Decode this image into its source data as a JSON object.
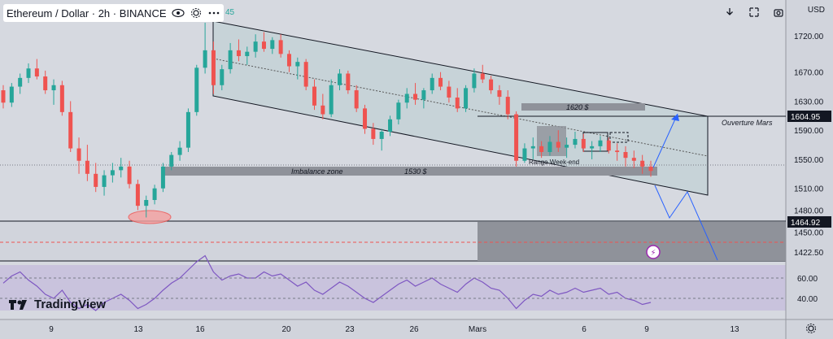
{
  "header": {
    "symbol": "Ethereum / Dollar · 2h · BINANCE",
    "suffix": "45"
  },
  "currency": "USD",
  "logo_text": "TradingView",
  "colors": {
    "background": "#d1d4dc",
    "up": "#26a69a",
    "down": "#ef5350",
    "channel_fill": "#c7d3d8",
    "zone": "#787b86",
    "rsi": "#7e57c2",
    "projection": "#2962ff"
  },
  "chart_data": [
    {
      "type": "candlestick",
      "title": "Ethereum / Dollar · 2h · BINANCE",
      "ylabel": "USD",
      "y_ticks": [
        1720.0,
        1670.0,
        1630.0,
        1590.0,
        1550.0,
        1510.0,
        1480.0,
        1450.0,
        1422.5
      ],
      "ylim": [
        1410,
        1755
      ],
      "x_ticks": [
        "9",
        "13",
        "16",
        "20",
        "23",
        "26",
        "Mars",
        "6",
        "9",
        "13"
      ],
      "x_tick_positions": [
        63,
        170,
        246,
        352,
        430,
        509,
        587,
        718,
        795,
        903
      ],
      "price_labels": [
        {
          "value": "1604.95",
          "price": 1604.95
        },
        {
          "value": "1464.92",
          "price": 1464.92
        }
      ],
      "annotations": [
        {
          "text": "Imbalance zone",
          "price": 1530
        },
        {
          "text": "1530 $",
          "price": 1530
        },
        {
          "text": "1620 $",
          "price": 1620
        },
        {
          "text": "Ouverture Mars",
          "price": 1604.95
        },
        {
          "text": "Range Week-end",
          "price": 1545
        }
      ],
      "series": [
        {
          "values": [
            [
              1645,
              1652,
              1620,
              1628
            ],
            [
              1628,
              1655,
              1622,
              1650
            ],
            [
              1650,
              1668,
              1640,
              1662
            ],
            [
              1662,
              1682,
              1655,
              1675
            ],
            [
              1675,
              1688,
              1660,
              1664
            ],
            [
              1664,
              1672,
              1640,
              1645
            ],
            [
              1645,
              1660,
              1625,
              1652
            ],
            [
              1652,
              1658,
              1610,
              1615
            ],
            [
              1615,
              1630,
              1560,
              1565
            ],
            [
              1565,
              1580,
              1530,
              1548
            ],
            [
              1548,
              1570,
              1520,
              1530
            ],
            [
              1530,
              1545,
              1505,
              1512
            ],
            [
              1512,
              1535,
              1500,
              1528
            ],
            [
              1528,
              1545,
              1518,
              1535
            ],
            [
              1535,
              1552,
              1525,
              1540
            ],
            [
              1540,
              1548,
              1510,
              1516
            ],
            [
              1516,
              1522,
              1480,
              1486
            ],
            [
              1486,
              1500,
              1470,
              1494
            ],
            [
              1494,
              1515,
              1488,
              1510
            ],
            [
              1510,
              1545,
              1505,
              1540
            ],
            [
              1540,
              1560,
              1535,
              1556
            ],
            [
              1556,
              1575,
              1548,
              1566
            ],
            [
              1566,
              1620,
              1560,
              1615
            ],
            [
              1615,
              1680,
              1610,
              1676
            ],
            [
              1676,
              1738,
              1668,
              1700
            ],
            [
              1700,
              1712,
              1640,
              1652
            ],
            [
              1652,
              1680,
              1645,
              1674
            ],
            [
              1674,
              1710,
              1668,
              1700
            ],
            [
              1700,
              1715,
              1685,
              1692
            ],
            [
              1692,
              1705,
              1680,
              1698
            ],
            [
              1698,
              1722,
              1690,
              1712
            ],
            [
              1712,
              1725,
              1698,
              1702
            ],
            [
              1702,
              1718,
              1695,
              1714
            ],
            [
              1714,
              1722,
              1690,
              1695
            ],
            [
              1695,
              1700,
              1670,
              1678
            ],
            [
              1678,
              1690,
              1660,
              1684
            ],
            [
              1684,
              1688,
              1645,
              1650
            ],
            [
              1650,
              1660,
              1618,
              1624
            ],
            [
              1624,
              1640,
              1605,
              1612
            ],
            [
              1612,
              1660,
              1608,
              1652
            ],
            [
              1652,
              1674,
              1645,
              1668
            ],
            [
              1668,
              1672,
              1640,
              1645
            ],
            [
              1645,
              1652,
              1615,
              1620
            ],
            [
              1620,
              1625,
              1585,
              1592
            ],
            [
              1592,
              1600,
              1570,
              1578
            ],
            [
              1578,
              1592,
              1562,
              1588
            ],
            [
              1588,
              1610,
              1582,
              1605
            ],
            [
              1605,
              1632,
              1598,
              1628
            ],
            [
              1628,
              1648,
              1620,
              1640
            ],
            [
              1640,
              1655,
              1625,
              1632
            ],
            [
              1632,
              1648,
              1620,
              1645
            ],
            [
              1645,
              1668,
              1640,
              1662
            ],
            [
              1662,
              1670,
              1645,
              1650
            ],
            [
              1650,
              1658,
              1628,
              1635
            ],
            [
              1635,
              1648,
              1615,
              1620
            ],
            [
              1620,
              1652,
              1615,
              1648
            ],
            [
              1648,
              1675,
              1642,
              1668
            ],
            [
              1668,
              1680,
              1655,
              1660
            ],
            [
              1660,
              1665,
              1640,
              1645
            ],
            [
              1645,
              1652,
              1625,
              1636
            ],
            [
              1636,
              1645,
              1605,
              1612
            ],
            [
              1612,
              1616,
              1540,
              1548
            ],
            [
              1548,
              1572,
              1545,
              1565
            ],
            [
              1565,
              1580,
              1550,
              1568
            ],
            [
              1568,
              1575,
              1552,
              1560
            ],
            [
              1560,
              1582,
              1555,
              1574
            ],
            [
              1574,
              1590,
              1560,
              1566
            ],
            [
              1566,
              1580,
              1552,
              1570
            ],
            [
              1570,
              1588,
              1565,
              1578
            ],
            [
              1578,
              1585,
              1560,
              1565
            ],
            [
              1565,
              1575,
              1550,
              1568
            ],
            [
              1568,
              1582,
              1560,
              1576
            ],
            [
              1576,
              1580,
              1558,
              1562
            ],
            [
              1562,
              1572,
              1548,
              1560
            ],
            [
              1560,
              1568,
              1540,
              1552
            ],
            [
              1552,
              1562,
              1538,
              1548
            ],
            [
              1548,
              1556,
              1530,
              1540
            ],
            [
              1540,
              1548,
              1526,
              1534
            ]
          ]
        }
      ]
    },
    {
      "type": "line",
      "ylabel": "RSI",
      "y_ticks": [
        60.0,
        40.0
      ],
      "ylim": [
        18,
        82
      ],
      "series": [
        {
          "values": [
            55,
            62,
            66,
            58,
            52,
            44,
            40,
            48,
            36,
            30,
            34,
            28,
            36,
            40,
            44,
            38,
            30,
            34,
            40,
            48,
            55,
            60,
            68,
            76,
            82,
            66,
            58,
            62,
            64,
            60,
            60,
            66,
            62,
            64,
            58,
            52,
            56,
            48,
            44,
            50,
            56,
            52,
            46,
            40,
            36,
            42,
            48,
            54,
            58,
            52,
            56,
            60,
            54,
            50,
            46,
            54,
            60,
            56,
            50,
            48,
            40,
            30,
            38,
            44,
            42,
            48,
            44,
            46,
            50,
            46,
            48,
            50,
            44,
            46,
            40,
            38,
            34,
            36
          ]
        }
      ]
    }
  ]
}
